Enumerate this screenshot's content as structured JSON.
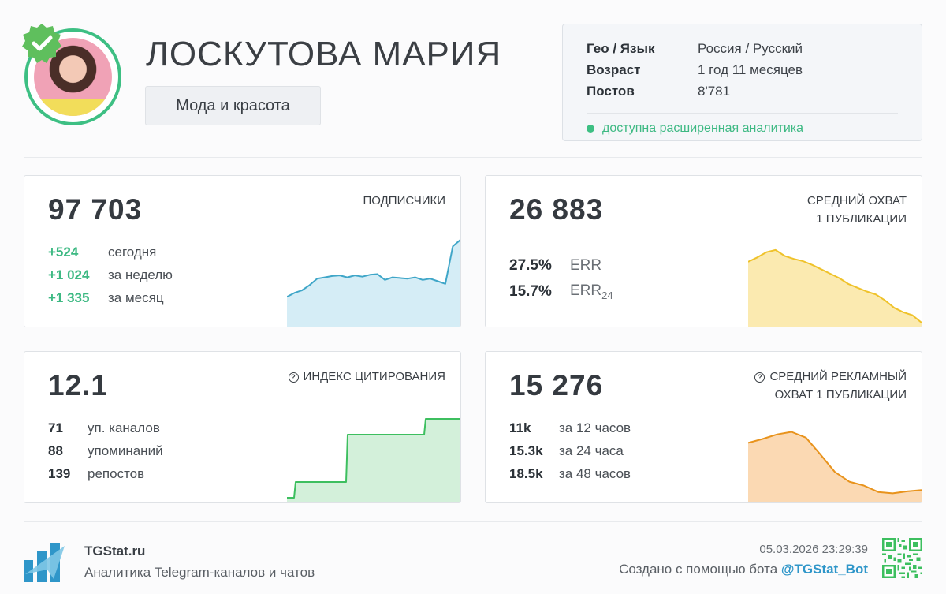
{
  "profile": {
    "name": "ЛОСКУТОВА МАРИЯ",
    "category": "Мода и красота",
    "verified": true
  },
  "info": {
    "rows": [
      {
        "key": "Гео / Язык",
        "value": "Россия / Русский"
      },
      {
        "key": "Возраст",
        "value": "1 год 11 месяцев"
      },
      {
        "key": "Постов",
        "value": "8'781"
      }
    ],
    "analytics_note": "доступна расширенная аналитика"
  },
  "subscribers": {
    "value": "97 703",
    "label": "ПОДПИСЧИКИ",
    "stats": [
      {
        "num": "+524",
        "text": "сегодня"
      },
      {
        "num": "+1 024",
        "text": "за неделю"
      },
      {
        "num": "+1 335",
        "text": "за месяц"
      }
    ]
  },
  "reach": {
    "value": "26 883",
    "label_line1": "СРЕДНИЙ ОХВАТ",
    "label_line2": "1 ПУБЛИКАЦИИ",
    "err": {
      "value": "27.5%",
      "label": "ERR"
    },
    "err24": {
      "value": "15.7%",
      "label": "ERR",
      "sub": "24"
    }
  },
  "citation": {
    "value": "12.1",
    "label": "ИНДЕКС ЦИТИРОВАНИЯ",
    "stats": [
      {
        "num": "71",
        "text": "уп. каналов"
      },
      {
        "num": "88",
        "text": "упоминаний"
      },
      {
        "num": "139",
        "text": "репостов"
      }
    ]
  },
  "ad_reach": {
    "value": "15 276",
    "label_line1": "СРЕДНИЙ РЕКЛАМНЫЙ",
    "label_line2": "ОХВАТ 1 ПУБЛИКАЦИИ",
    "stats": [
      {
        "num": "11k",
        "text": "за 12 часов"
      },
      {
        "num": "15.3k",
        "text": "за 24 часа"
      },
      {
        "num": "18.5k",
        "text": "за 48 часов"
      }
    ]
  },
  "footer": {
    "brand": "TGStat.ru",
    "tagline": "Аналитика Telegram-каналов и чатов",
    "timestamp": "05.03.2026 23:29:39",
    "created_prefix": "Создано с помощью бота",
    "bot": "@TGStat_Bot"
  },
  "colors": {
    "accent_green": "#3dbf83",
    "subscribers_line": "#3fa6c8",
    "reach_line": "#efc22a",
    "citation_line": "#3dbf5f",
    "ad_reach_line": "#e8931c",
    "bot_link": "#2f96c9"
  },
  "chart_data": [
    {
      "type": "area",
      "name": "subscribers-sparkline",
      "values": [
        0.12,
        0.18,
        0.22,
        0.3,
        0.4,
        0.42,
        0.44,
        0.45,
        0.42,
        0.45,
        0.43,
        0.46,
        0.47,
        0.38,
        0.42,
        0.41,
        0.4,
        0.42,
        0.38,
        0.4,
        0.36,
        0.32,
        0.9,
        1.0
      ]
    },
    {
      "type": "area",
      "name": "reach-sparkline",
      "values": [
        0.82,
        0.88,
        0.95,
        0.98,
        0.9,
        0.86,
        0.83,
        0.78,
        0.72,
        0.66,
        0.6,
        0.52,
        0.47,
        0.42,
        0.38,
        0.3,
        0.2,
        0.14,
        0.1,
        0.0
      ]
    },
    {
      "type": "area",
      "name": "citation-sparkline",
      "values": [
        0.0,
        0.2,
        0.2,
        0.2,
        0.2,
        0.2,
        0.2,
        0.8,
        0.8,
        0.8,
        0.8,
        0.8,
        0.8,
        0.8,
        0.8,
        0.8,
        1.0,
        1.0,
        1.0,
        1.0,
        1.0
      ]
    },
    {
      "type": "area",
      "name": "ad-reach-sparkline",
      "values": [
        0.8,
        0.86,
        0.93,
        0.97,
        0.88,
        0.62,
        0.35,
        0.2,
        0.14,
        0.04,
        0.02,
        0.05,
        0.07
      ]
    }
  ]
}
